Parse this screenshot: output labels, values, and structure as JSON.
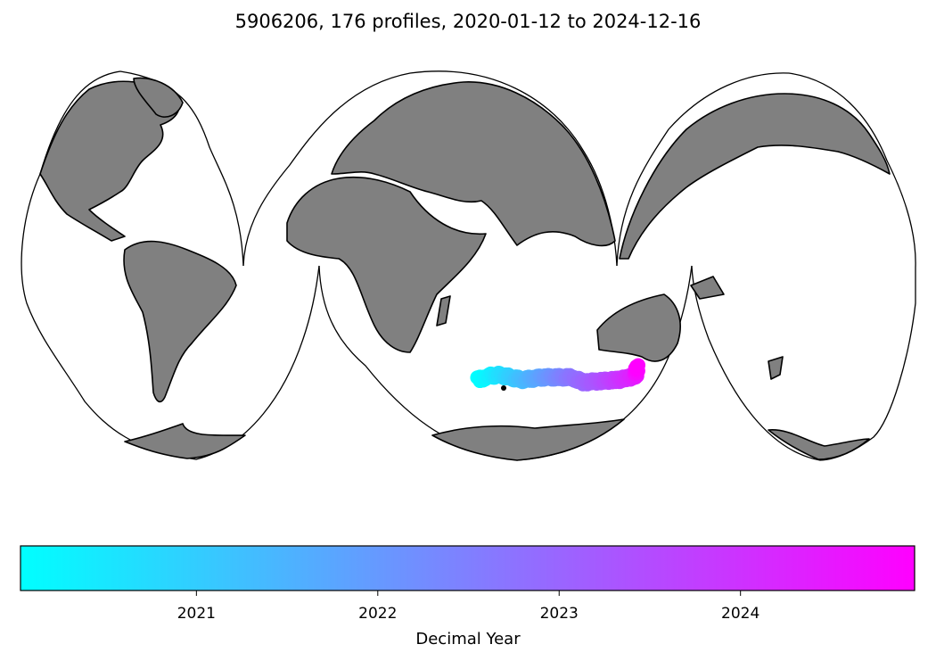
{
  "title": "5906206, 176 profiles, 2020-01-12 to 2024-12-16",
  "chart_data": {
    "type": "scatter",
    "projection": "interrupted goode homolosine",
    "float_id": "5906206",
    "profile_count": 176,
    "date_start": "2020-01-12",
    "date_end": "2024-12-16",
    "track_waypoints": [
      {
        "lon": 55,
        "lat": -46,
        "year": 2020.03
      },
      {
        "lon": 62,
        "lat": -44.5,
        "year": 2020.3
      },
      {
        "lon": 67,
        "lat": -44,
        "year": 2020.6
      },
      {
        "lon": 80,
        "lat": -46,
        "year": 2021.3
      },
      {
        "lon": 92,
        "lat": -45,
        "year": 2021.9
      },
      {
        "lon": 100,
        "lat": -45,
        "year": 2022.3
      },
      {
        "lon": 108,
        "lat": -45,
        "year": 2022.7
      },
      {
        "lon": 115,
        "lat": -47,
        "year": 2023.0
      },
      {
        "lon": 125,
        "lat": -46.5,
        "year": 2023.4
      },
      {
        "lon": 135,
        "lat": -46,
        "year": 2023.9
      },
      {
        "lon": 145,
        "lat": -44.5,
        "year": 2024.4
      },
      {
        "lon": 146,
        "lat": -41,
        "year": 2024.96
      }
    ],
    "colorbar": {
      "label": "Decimal Year",
      "min": 2020.03,
      "max": 2024.96,
      "ticks": [
        2021,
        2022,
        2023,
        2024
      ],
      "tick_labels": [
        "2021",
        "2022",
        "2023",
        "2024"
      ],
      "colormap": "cool",
      "color_min": "#00ffff",
      "color_max": "#ff00ff"
    },
    "land_color": "#808080"
  }
}
